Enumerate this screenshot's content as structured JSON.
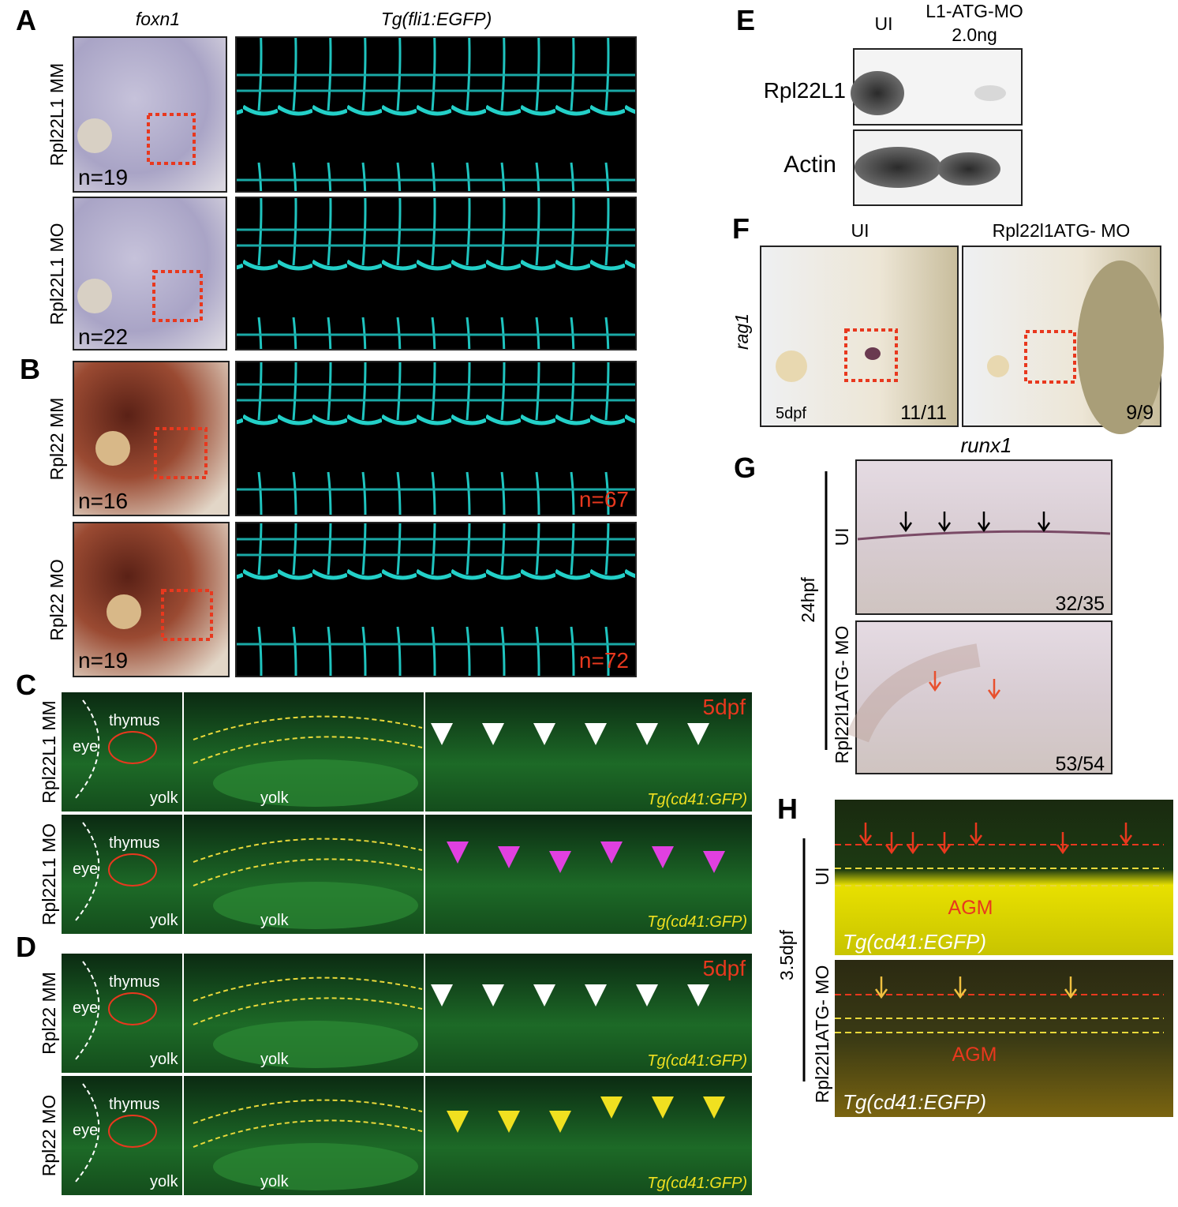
{
  "panels": {
    "A": {
      "label": "A",
      "col_titles": [
        "foxn1",
        "Tg(fli1:EGFP)"
      ],
      "rows": [
        {
          "name": "Rpl22L1 MM",
          "n": "n=19"
        },
        {
          "name": "Rpl22L1 MO",
          "n": "n=22"
        }
      ]
    },
    "B": {
      "label": "B",
      "rows": [
        {
          "name": "Rpl22 MM",
          "n": "n=16",
          "n_vessels": "n=67"
        },
        {
          "name": "Rpl22 MO",
          "n": "n=19",
          "n_vessels": "n=72"
        }
      ]
    },
    "C": {
      "label": "C",
      "stage": "5dpf",
      "rows": [
        {
          "name": "Rpl22L1 MM",
          "eye": "eye",
          "thymus": "thymus",
          "yolk_head": "yolk",
          "yolk_trunk": "yolk",
          "transgene": "Tg(cd41:GFP)"
        },
        {
          "name": "Rpl22L1 MO",
          "eye": "eye",
          "thymus": "thymus",
          "yolk_head": "yolk",
          "yolk_trunk": "yolk",
          "transgene": "Tg(cd41:GFP)"
        }
      ]
    },
    "D": {
      "label": "D",
      "stage": "5dpf",
      "rows": [
        {
          "name": "Rpl22 MM",
          "eye": "eye",
          "thymus": "thymus",
          "yolk_head": "yolk",
          "yolk_trunk": "yolk",
          "transgene": "Tg(cd41:GFP)"
        },
        {
          "name": "Rpl22 MO",
          "eye": "eye",
          "thymus": "thymus",
          "yolk_head": "yolk",
          "yolk_trunk": "yolk",
          "transgene": "Tg(cd41:GFP)"
        }
      ]
    },
    "E": {
      "label": "E",
      "lanes": [
        "UI",
        "L1-ATG-MO",
        "2.0ng"
      ],
      "bands": [
        "Rpl22L1",
        "Actin"
      ]
    },
    "F": {
      "label": "F",
      "probe": "rag1",
      "cols": [
        "UI",
        "Rpl22l1ATG- MO"
      ],
      "stage": "5dpf",
      "counts": [
        "11/11",
        "9/9"
      ]
    },
    "G": {
      "label": "G",
      "probe": "runx1",
      "stage": "24hpf",
      "rows": [
        "UI",
        "Rpl22l1ATG- MO"
      ],
      "counts": [
        "32/35",
        "53/54"
      ]
    },
    "H": {
      "label": "H",
      "stage": "3.5dpf",
      "rows": [
        "UI",
        "Rpl22l1ATG- MO"
      ],
      "region": [
        "AGM",
        "AGM"
      ],
      "transgene": [
        "Tg(cd41:EGFP)",
        "Tg(cd41:EGFP)"
      ]
    }
  }
}
